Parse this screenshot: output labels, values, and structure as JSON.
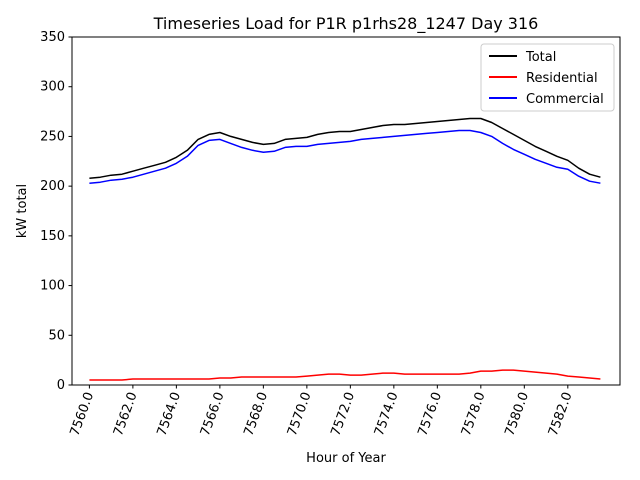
{
  "chart_data": {
    "type": "line",
    "title": "Timeseries Load for P1R p1rhs28_1247  Day 316",
    "xlabel": "Hour of Year",
    "ylabel": "kW total",
    "xlim": [
      7559.2,
      7584.4
    ],
    "ylim": [
      0,
      350
    ],
    "xticks": [
      7560,
      7562,
      7564,
      7566,
      7568,
      7570,
      7572,
      7574,
      7576,
      7578,
      7580,
      7582
    ],
    "xtick_labels": [
      "7560.0",
      "7562.0",
      "7564.0",
      "7566.0",
      "7568.0",
      "7570.0",
      "7572.0",
      "7574.0",
      "7576.0",
      "7578.0",
      "7580.0",
      "7582.0"
    ],
    "yticks": [
      0,
      50,
      100,
      150,
      200,
      250,
      300,
      350
    ],
    "ytick_labels": [
      "0",
      "50",
      "100",
      "150",
      "200",
      "250",
      "300",
      "350"
    ],
    "grid": false,
    "legend_position": "top-right",
    "x": [
      7560.0,
      7560.5,
      7561.0,
      7561.5,
      7562.0,
      7562.5,
      7563.0,
      7563.5,
      7564.0,
      7564.5,
      7565.0,
      7565.5,
      7566.0,
      7566.5,
      7567.0,
      7567.5,
      7568.0,
      7568.5,
      7569.0,
      7569.5,
      7570.0,
      7570.5,
      7571.0,
      7571.5,
      7572.0,
      7572.5,
      7573.0,
      7573.5,
      7574.0,
      7574.5,
      7575.0,
      7575.5,
      7576.0,
      7576.5,
      7577.0,
      7577.5,
      7578.0,
      7578.5,
      7579.0,
      7579.5,
      7580.0,
      7580.5,
      7581.0,
      7581.5,
      7582.0,
      7582.5,
      7583.0,
      7583.5
    ],
    "series": [
      {
        "name": "Total",
        "color": "#000000",
        "values": [
          208,
          209,
          211,
          212,
          215,
          218,
          221,
          224,
          229,
          236,
          247,
          252,
          254,
          250,
          247,
          244,
          242,
          243,
          247,
          248,
          249,
          252,
          254,
          255,
          255,
          257,
          259,
          261,
          262,
          262,
          263,
          264,
          265,
          266,
          267,
          268,
          268,
          264,
          258,
          252,
          246,
          240,
          235,
          230,
          226,
          218,
          212,
          209
        ]
      },
      {
        "name": "Residential",
        "color": "#ff0000",
        "values": [
          5,
          5,
          5,
          5,
          6,
          6,
          6,
          6,
          6,
          6,
          6,
          6,
          7,
          7,
          8,
          8,
          8,
          8,
          8,
          8,
          9,
          10,
          11,
          11,
          10,
          10,
          11,
          12,
          12,
          11,
          11,
          11,
          11,
          11,
          11,
          12,
          14,
          14,
          15,
          15,
          14,
          13,
          12,
          11,
          9,
          8,
          7,
          6
        ]
      },
      {
        "name": "Commercial",
        "color": "#0000ff",
        "values": [
          203,
          204,
          206,
          207,
          209,
          212,
          215,
          218,
          223,
          230,
          241,
          246,
          247,
          243,
          239,
          236,
          234,
          235,
          239,
          240,
          240,
          242,
          243,
          244,
          245,
          247,
          248,
          249,
          250,
          251,
          252,
          253,
          254,
          255,
          256,
          256,
          254,
          250,
          243,
          237,
          232,
          227,
          223,
          219,
          217,
          210,
          205,
          203
        ]
      }
    ]
  }
}
